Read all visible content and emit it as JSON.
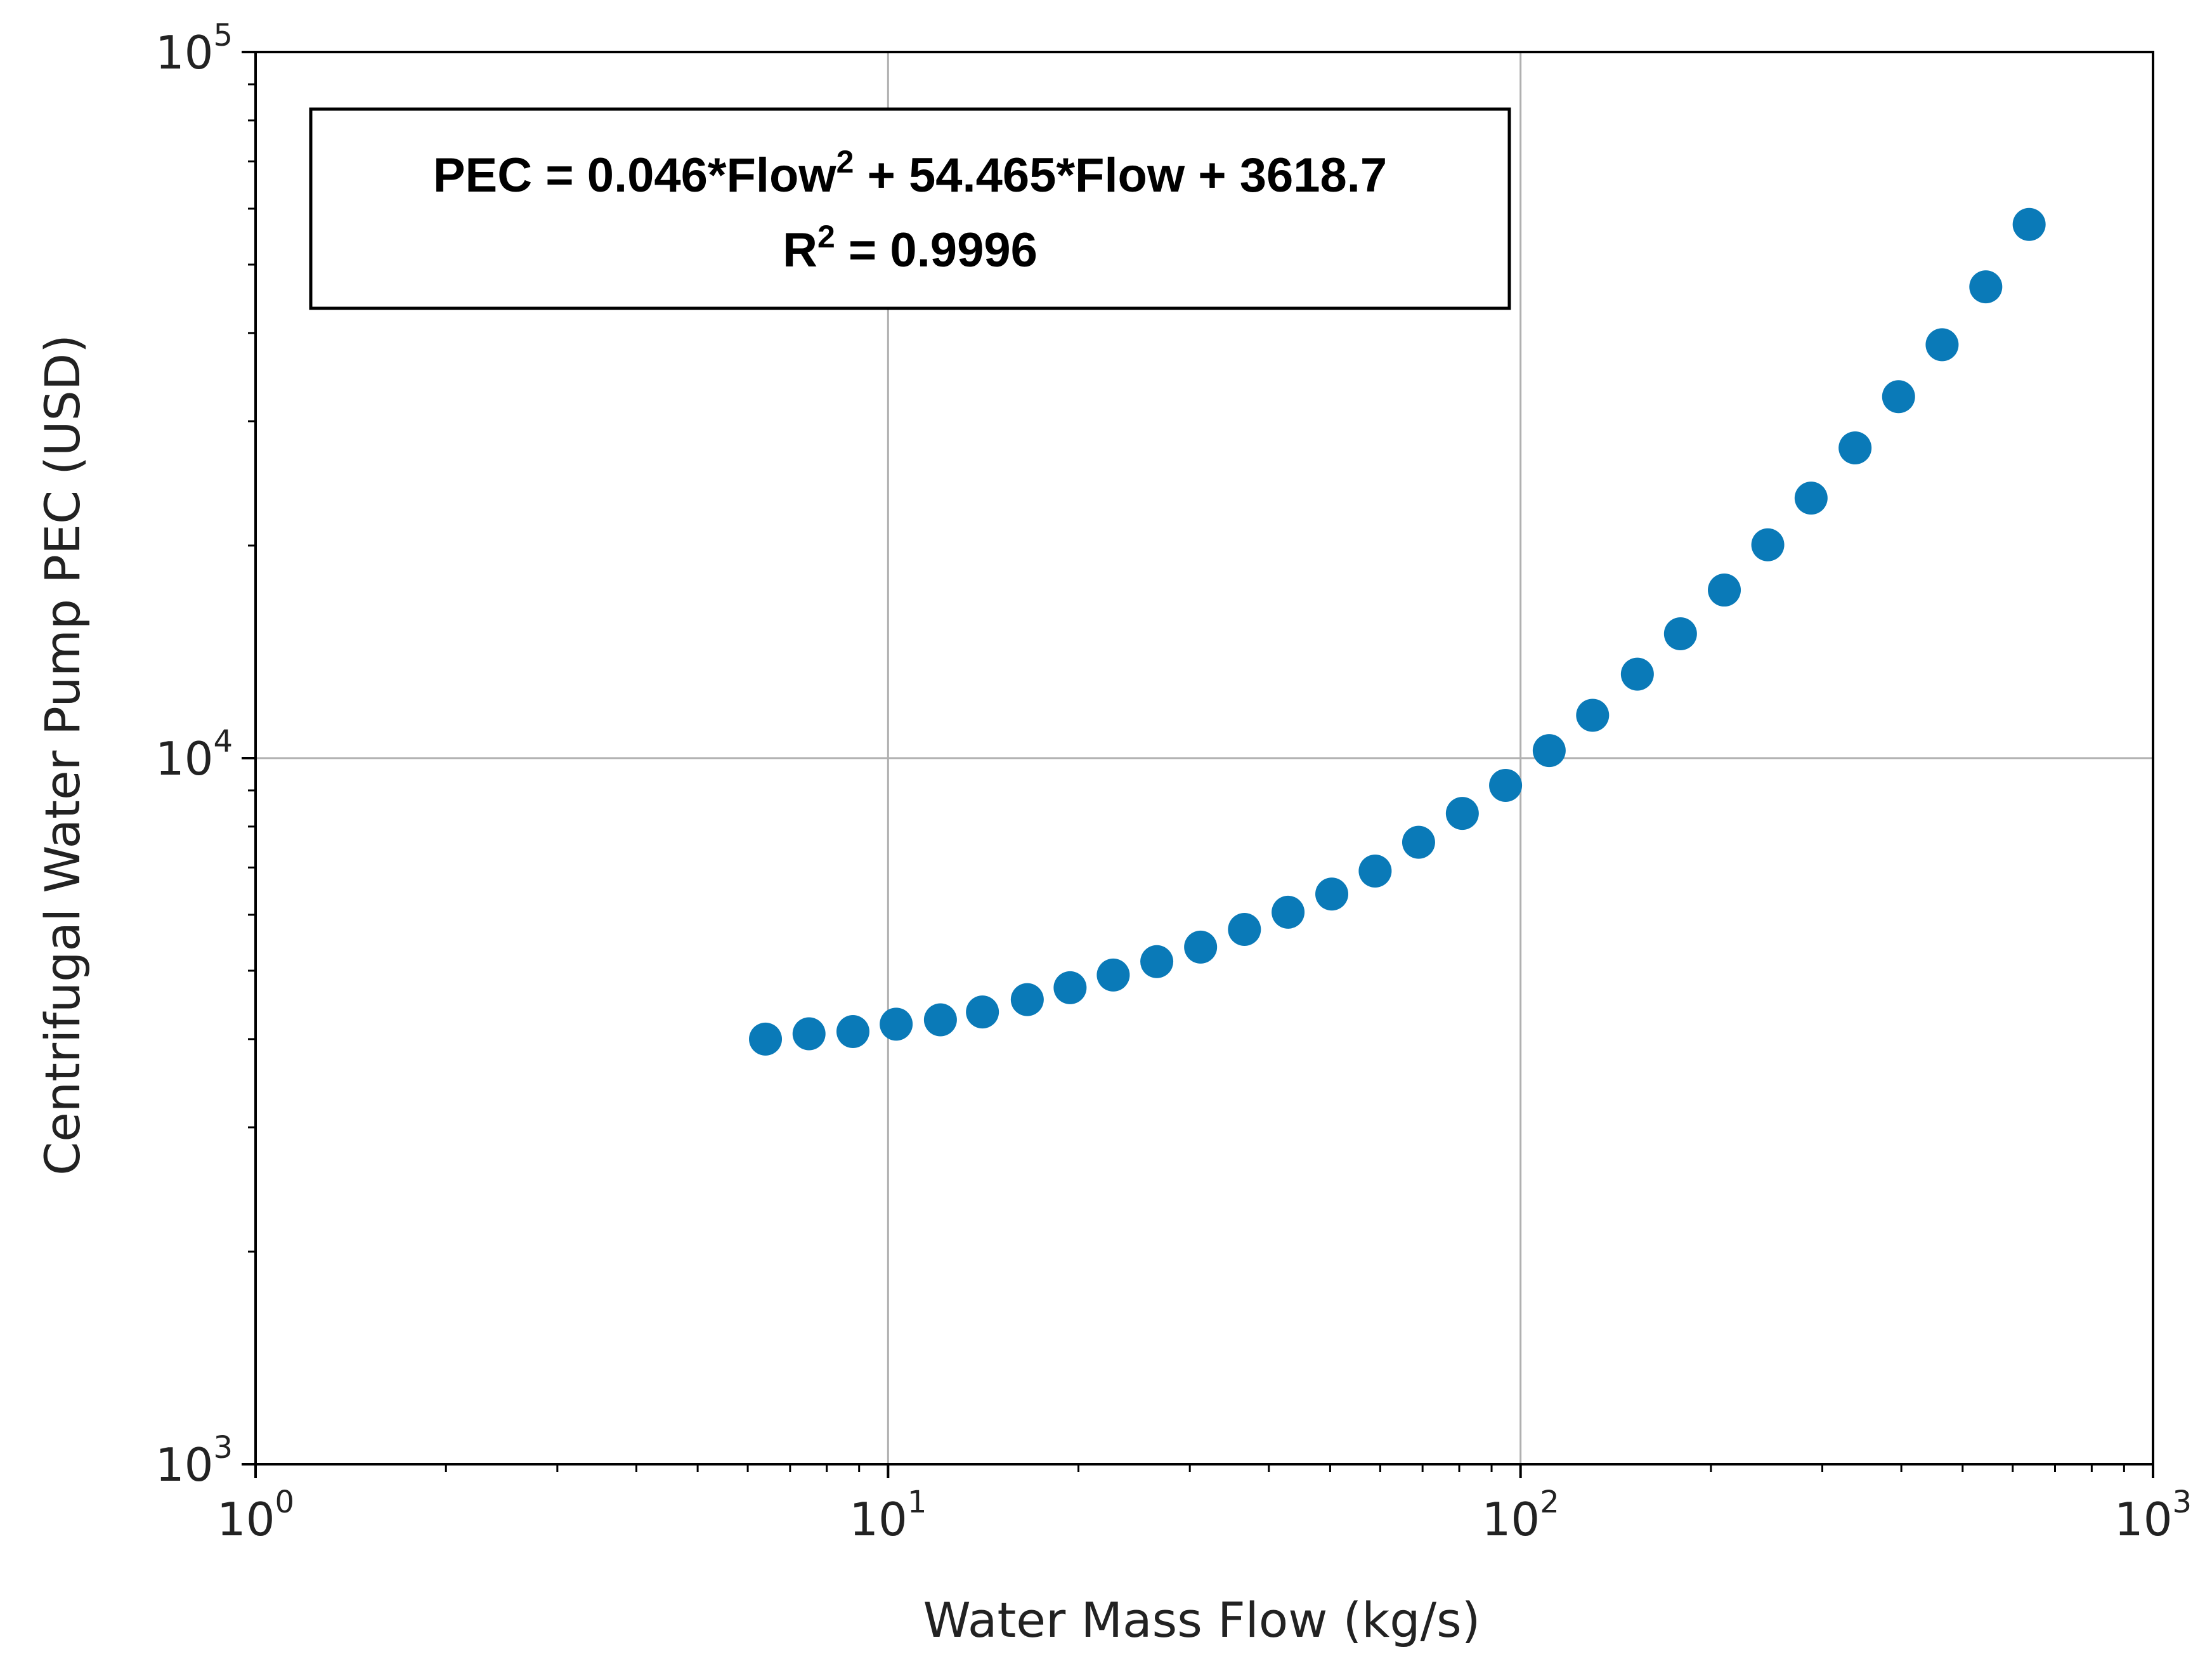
{
  "chart_data": {
    "type": "scatter",
    "xscale": "log",
    "yscale": "log",
    "xlim": [
      1,
      1000
    ],
    "ylim": [
      1000,
      100000
    ],
    "xlabel": "Water Mass Flow (kg/s)",
    "ylabel": "Centrifugal Water Pump PEC (USD)",
    "grid": true,
    "x_ticks": [
      {
        "base": "10",
        "exp": "0"
      },
      {
        "base": "10",
        "exp": "1"
      },
      {
        "base": "10",
        "exp": "2"
      },
      {
        "base": "10",
        "exp": "3"
      }
    ],
    "y_ticks": [
      {
        "base": "10",
        "exp": "3"
      },
      {
        "base": "10",
        "exp": "4"
      },
      {
        "base": "10",
        "exp": "5"
      }
    ],
    "annotation": {
      "line1_prefix": "PEC = 0.046*Flow",
      "line1_sup": "2",
      "line1_suffix": " + 54.465*Flow + 3618.7",
      "line2_prefix": "R",
      "line2_sup": "2",
      "line2_suffix": " = 0.9996"
    },
    "marker_color": "#0a7ab8",
    "series": [
      {
        "name": "PEC",
        "x": [
          6.4,
          7.5,
          8.8,
          10.3,
          12.1,
          14.1,
          16.6,
          19.4,
          22.7,
          26.6,
          31.2,
          36.6,
          42.9,
          50.3,
          58.9,
          69.0,
          80.9,
          94.7,
          111,
          130,
          153,
          179,
          210,
          246,
          288,
          338,
          396,
          464,
          544,
          637
        ],
        "y": [
          4000,
          4070,
          4100,
          4200,
          4260,
          4370,
          4550,
          4730,
          4930,
          5150,
          5400,
          5720,
          6050,
          6420,
          6920,
          7600,
          8350,
          9150,
          10250,
          11500,
          13150,
          15000,
          17300,
          20050,
          23350,
          27500,
          32500,
          38500,
          46500,
          57000
        ]
      }
    ]
  }
}
